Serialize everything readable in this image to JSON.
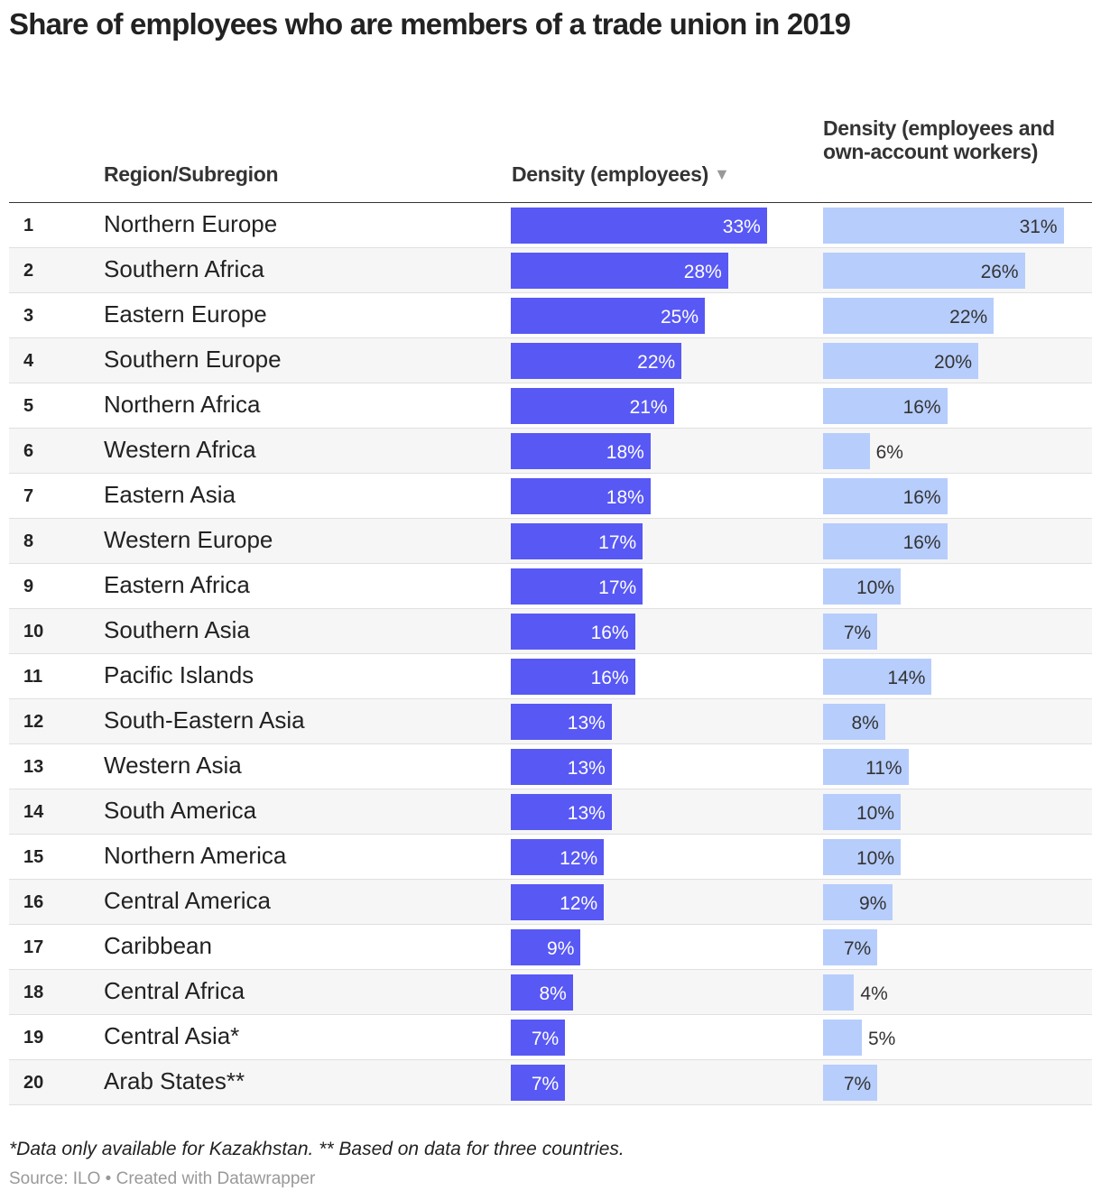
{
  "title": "Share of employees who are members of a trade union in 2019",
  "columns": {
    "region": "Region/Subregion",
    "employees": "Density (employees)",
    "employees_own": "Density (employees and own-account workers)",
    "sort_icon": "triangle-down-icon"
  },
  "colors": {
    "employees_bar": "#5858f5",
    "employees_own_bar": "#b7cdfc"
  },
  "footnote": "*Data only available for Kazakhstan. ** Based on data for three countries.",
  "source": "Source: ILO • Created with Datawrapper",
  "chart_data": {
    "type": "table",
    "title": "Share of employees who are members of a trade union in 2019",
    "rows": [
      {
        "rank": "1",
        "region": "Northern Europe",
        "employees": 33,
        "employees_own": 31
      },
      {
        "rank": "2",
        "region": "Southern Africa",
        "employees": 28,
        "employees_own": 26
      },
      {
        "rank": "3",
        "region": "Eastern Europe",
        "employees": 25,
        "employees_own": 22
      },
      {
        "rank": "4",
        "region": "Southern Europe",
        "employees": 22,
        "employees_own": 20
      },
      {
        "rank": "5",
        "region": "Northern Africa",
        "employees": 21,
        "employees_own": 16
      },
      {
        "rank": "6",
        "region": "Western Africa",
        "employees": 18,
        "employees_own": 6
      },
      {
        "rank": "7",
        "region": "Eastern Asia",
        "employees": 18,
        "employees_own": 16
      },
      {
        "rank": "8",
        "region": "Western Europe",
        "employees": 17,
        "employees_own": 16
      },
      {
        "rank": "9",
        "region": "Eastern Africa",
        "employees": 17,
        "employees_own": 10
      },
      {
        "rank": "10",
        "region": "Southern Asia",
        "employees": 16,
        "employees_own": 7
      },
      {
        "rank": "11",
        "region": "Pacific Islands",
        "employees": 16,
        "employees_own": 14
      },
      {
        "rank": "12",
        "region": "South-Eastern Asia",
        "employees": 13,
        "employees_own": 8
      },
      {
        "rank": "13",
        "region": "Western Asia",
        "employees": 13,
        "employees_own": 11
      },
      {
        "rank": "14",
        "region": "South America",
        "employees": 13,
        "employees_own": 10
      },
      {
        "rank": "15",
        "region": "Northern America",
        "employees": 12,
        "employees_own": 10
      },
      {
        "rank": "16",
        "region": "Central America",
        "employees": 12,
        "employees_own": 9
      },
      {
        "rank": "17",
        "region": "Caribbean",
        "employees": 9,
        "employees_own": 7
      },
      {
        "rank": "18",
        "region": "Central Africa",
        "employees": 8,
        "employees_own": 4
      },
      {
        "rank": "19",
        "region": "Central Asia*",
        "employees": 7,
        "employees_own": 5
      },
      {
        "rank": "20",
        "region": "Arab States**",
        "employees": 7,
        "employees_own": 7
      }
    ]
  }
}
